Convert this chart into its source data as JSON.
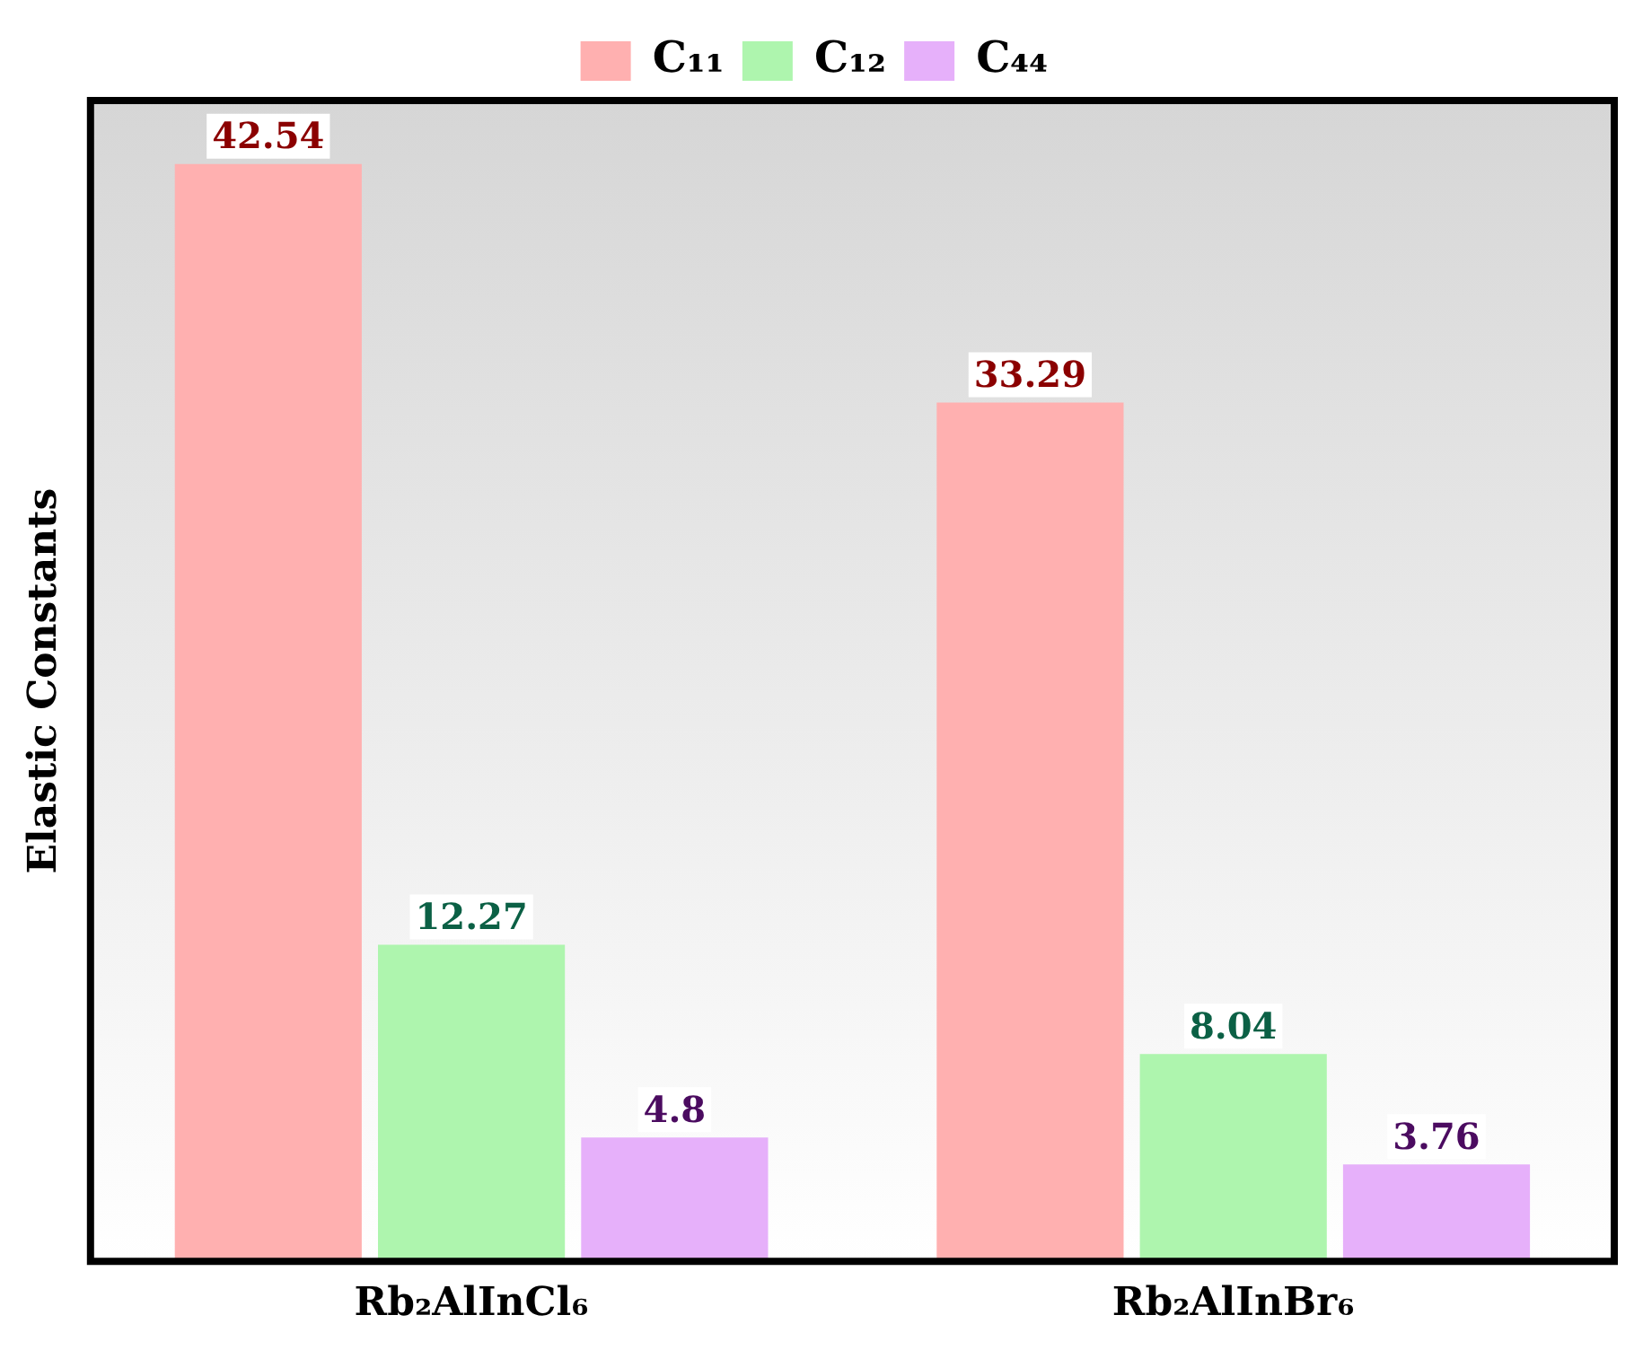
{
  "chart_data": {
    "type": "bar",
    "ylabel": "Elastic Constants",
    "categories": [
      "Rb₂AlInCl₆",
      "Rb₂AlInBr₆"
    ],
    "series": [
      {
        "name": "C₁₁",
        "color": "#ffb0b0",
        "values": [
          42.54,
          33.29
        ]
      },
      {
        "name": "C₁₂",
        "color": "#aef5ae",
        "values": [
          12.27,
          8.04
        ]
      },
      {
        "name": "C₄₄",
        "color": "#e6b0fa",
        "values": [
          4.8,
          3.76
        ]
      }
    ],
    "data_labels": true,
    "legend": "top",
    "grid": false
  }
}
